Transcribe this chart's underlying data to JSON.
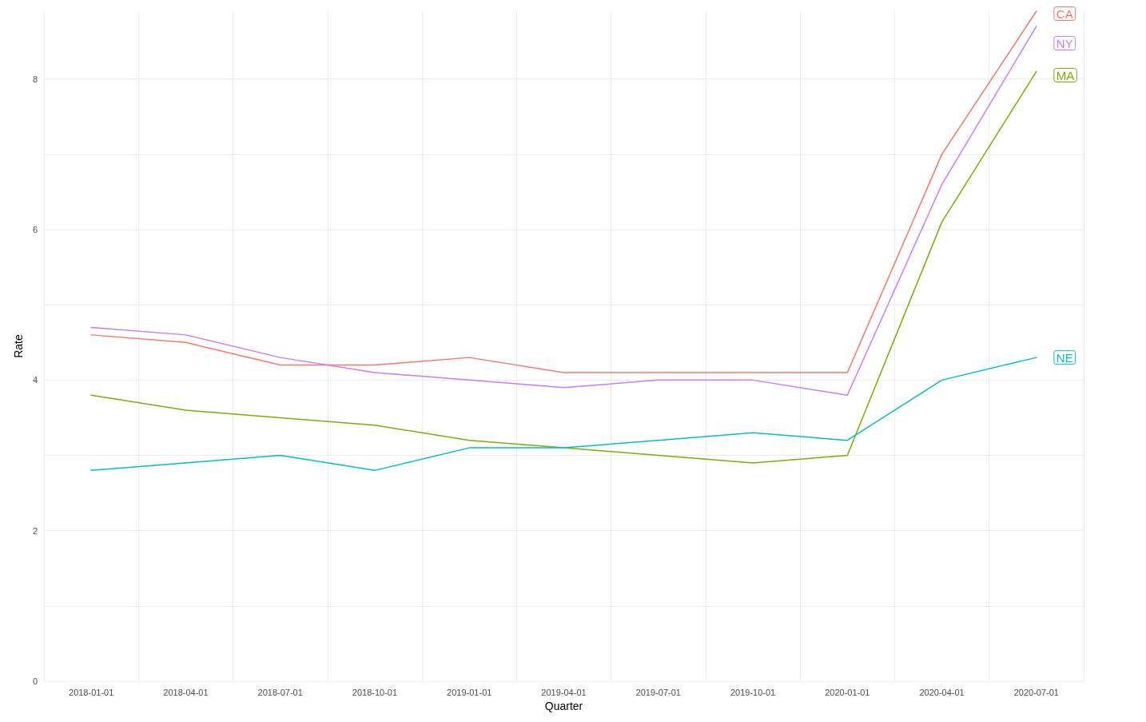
{
  "chart_data": {
    "type": "line",
    "xlabel": "Quarter",
    "ylabel": "Rate",
    "categories": [
      "2018-01-01",
      "2018-04-01",
      "2018-07-01",
      "2018-10-01",
      "2019-01-01",
      "2019-04-01",
      "2019-07-01",
      "2019-10-01",
      "2020-01-01",
      "2020-04-01",
      "2020-07-01"
    ],
    "series": [
      {
        "name": "CA",
        "color": "#f8766d",
        "values": [
          4.6,
          4.5,
          4.2,
          4.2,
          4.3,
          4.1,
          4.1,
          4.1,
          4.1,
          7.0,
          8.9
        ]
      },
      {
        "name": "NY",
        "color": "#c77cff",
        "values": [
          4.7,
          4.6,
          4.3,
          4.1,
          4.0,
          3.9,
          4.0,
          4.0,
          3.8,
          6.6,
          8.7
        ]
      },
      {
        "name": "MA",
        "color": "#7cae00",
        "values": [
          3.8,
          3.6,
          3.5,
          3.4,
          3.2,
          3.1,
          3.0,
          2.9,
          3.0,
          6.1,
          8.1
        ]
      },
      {
        "name": "NE",
        "color": "#00bfc4",
        "values": [
          2.8,
          2.9,
          3.0,
          2.8,
          3.1,
          3.1,
          3.2,
          3.3,
          3.2,
          4.0,
          4.3
        ]
      }
    ],
    "ylim": [
      0,
      8.9
    ],
    "yticks": [
      0,
      {
        "value": 1,
        "label": null
      },
      2,
      {
        "value": 3,
        "label": null
      },
      4,
      {
        "value": 5,
        "label": null
      },
      6,
      {
        "value": 7,
        "label": null
      },
      8
    ],
    "grid": true,
    "legend": false,
    "marker": "none",
    "line_style": "solid"
  }
}
